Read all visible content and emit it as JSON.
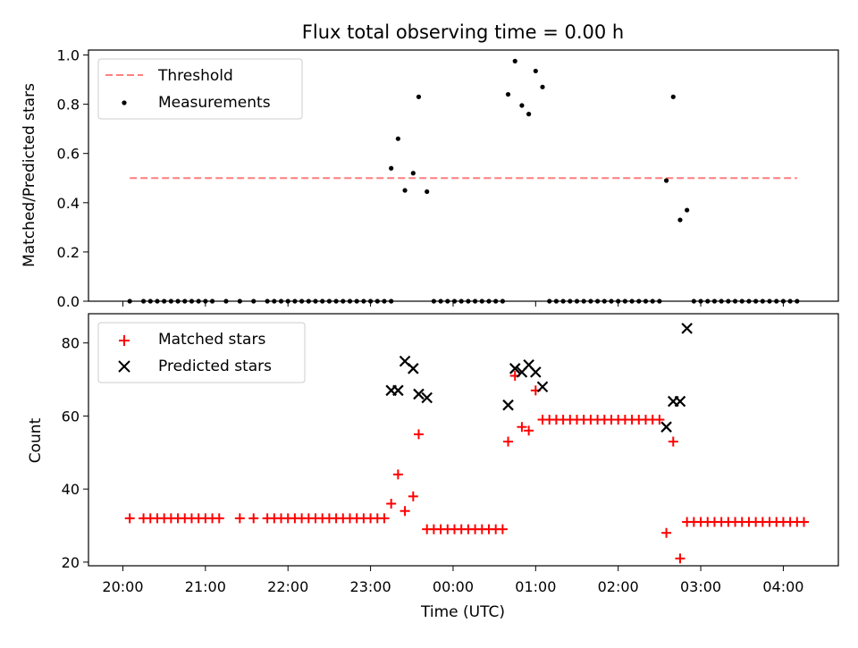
{
  "chart_data": [
    {
      "type": "scatter",
      "title": "Flux total observing time = 0.00 h",
      "xlabel": "",
      "ylabel": "Matched/Predicted stars",
      "ylim": [
        0,
        1.02
      ],
      "yticks": [
        "0.0",
        "0.2",
        "0.4",
        "0.6",
        "0.8",
        "1.0"
      ],
      "legend": {
        "position": "top-left",
        "entries": [
          "Threshold",
          "Measurements"
        ]
      },
      "threshold": {
        "name": "Threshold",
        "y": 0.5,
        "x_start": "20:05",
        "x_end": "04:10",
        "color": "#ff7f7f"
      },
      "series": [
        {
          "name": "Measurements",
          "color": "#000000",
          "points": [
            [
              "20:05",
              0
            ],
            [
              "20:15",
              0
            ],
            [
              "20:20",
              0
            ],
            [
              "20:25",
              0
            ],
            [
              "20:30",
              0
            ],
            [
              "20:35",
              0
            ],
            [
              "20:40",
              0
            ],
            [
              "20:45",
              0
            ],
            [
              "20:50",
              0
            ],
            [
              "20:55",
              0
            ],
            [
              "21:00",
              0
            ],
            [
              "21:05",
              0
            ],
            [
              "21:15",
              0
            ],
            [
              "21:25",
              0
            ],
            [
              "21:35",
              0
            ],
            [
              "21:45",
              0
            ],
            [
              "21:50",
              0
            ],
            [
              "21:55",
              0
            ],
            [
              "22:00",
              0
            ],
            [
              "22:05",
              0
            ],
            [
              "22:10",
              0
            ],
            [
              "22:15",
              0
            ],
            [
              "22:20",
              0
            ],
            [
              "22:25",
              0
            ],
            [
              "22:30",
              0
            ],
            [
              "22:35",
              0
            ],
            [
              "22:40",
              0
            ],
            [
              "22:45",
              0
            ],
            [
              "22:50",
              0
            ],
            [
              "22:55",
              0
            ],
            [
              "23:00",
              0
            ],
            [
              "23:05",
              0
            ],
            [
              "23:10",
              0
            ],
            [
              "23:15",
              0
            ],
            [
              "23:15",
              0.54
            ],
            [
              "23:20",
              0.66
            ],
            [
              "23:25",
              0.45
            ],
            [
              "23:31",
              0.52
            ],
            [
              "23:35",
              0.83
            ],
            [
              "23:41",
              0.445
            ],
            [
              "23:46",
              0
            ],
            [
              "23:51",
              0
            ],
            [
              "23:56",
              0
            ],
            [
              "00:01",
              0
            ],
            [
              "00:06",
              0
            ],
            [
              "00:11",
              0
            ],
            [
              "00:16",
              0
            ],
            [
              "00:21",
              0
            ],
            [
              "00:26",
              0
            ],
            [
              "00:31",
              0
            ],
            [
              "00:36",
              0
            ],
            [
              "00:40",
              0.84
            ],
            [
              "00:45",
              0.975
            ],
            [
              "00:50",
              0.795
            ],
            [
              "00:55",
              0.76
            ],
            [
              "01:00",
              0.935
            ],
            [
              "01:05",
              0.87
            ],
            [
              "01:10",
              0
            ],
            [
              "01:15",
              0
            ],
            [
              "01:20",
              0
            ],
            [
              "01:25",
              0
            ],
            [
              "01:30",
              0
            ],
            [
              "01:35",
              0
            ],
            [
              "01:40",
              0
            ],
            [
              "01:45",
              0
            ],
            [
              "01:50",
              0
            ],
            [
              "01:55",
              0
            ],
            [
              "02:00",
              0
            ],
            [
              "02:05",
              0
            ],
            [
              "02:10",
              0
            ],
            [
              "02:15",
              0
            ],
            [
              "02:20",
              0
            ],
            [
              "02:25",
              0
            ],
            [
              "02:30",
              0
            ],
            [
              "02:35",
              0.49
            ],
            [
              "02:40",
              0.83
            ],
            [
              "02:45",
              0.33
            ],
            [
              "02:50",
              0.37
            ],
            [
              "02:55",
              0
            ],
            [
              "03:00",
              0
            ],
            [
              "03:05",
              0
            ],
            [
              "03:10",
              0
            ],
            [
              "03:15",
              0
            ],
            [
              "03:20",
              0
            ],
            [
              "03:25",
              0
            ],
            [
              "03:30",
              0
            ],
            [
              "03:35",
              0
            ],
            [
              "03:40",
              0
            ],
            [
              "03:45",
              0
            ],
            [
              "03:50",
              0
            ],
            [
              "03:55",
              0
            ],
            [
              "04:00",
              0
            ],
            [
              "04:05",
              0
            ],
            [
              "04:10",
              0
            ]
          ]
        }
      ]
    },
    {
      "type": "scatter",
      "title": "",
      "xlabel": "Time (UTC)",
      "ylabel": "Count",
      "ylim": [
        19,
        88
      ],
      "xlim": [
        "19:35",
        "04:40"
      ],
      "xticks": [
        "20:00",
        "21:00",
        "22:00",
        "23:00",
        "00:00",
        "01:00",
        "02:00",
        "03:00",
        "04:00"
      ],
      "yticks": [
        "20",
        "40",
        "60",
        "80"
      ],
      "legend": {
        "position": "top-left",
        "entries": [
          "Matched stars",
          "Predicted stars"
        ]
      },
      "series": [
        {
          "name": "Matched stars",
          "marker": "plus",
          "color": "#ff0000",
          "points": [
            [
              "20:05",
              32
            ],
            [
              "20:15",
              32
            ],
            [
              "20:20",
              32
            ],
            [
              "20:25",
              32
            ],
            [
              "20:30",
              32
            ],
            [
              "20:35",
              32
            ],
            [
              "20:40",
              32
            ],
            [
              "20:45",
              32
            ],
            [
              "20:50",
              32
            ],
            [
              "20:55",
              32
            ],
            [
              "21:00",
              32
            ],
            [
              "21:05",
              32
            ],
            [
              "21:10",
              32
            ],
            [
              "21:25",
              32
            ],
            [
              "21:35",
              32
            ],
            [
              "21:45",
              32
            ],
            [
              "21:50",
              32
            ],
            [
              "21:55",
              32
            ],
            [
              "22:00",
              32
            ],
            [
              "22:05",
              32
            ],
            [
              "22:10",
              32
            ],
            [
              "22:15",
              32
            ],
            [
              "22:20",
              32
            ],
            [
              "22:25",
              32
            ],
            [
              "22:30",
              32
            ],
            [
              "22:35",
              32
            ],
            [
              "22:40",
              32
            ],
            [
              "22:45",
              32
            ],
            [
              "22:50",
              32
            ],
            [
              "22:55",
              32
            ],
            [
              "23:00",
              32
            ],
            [
              "23:05",
              32
            ],
            [
              "23:10",
              32
            ],
            [
              "23:15",
              36
            ],
            [
              "23:20",
              44
            ],
            [
              "23:25",
              34
            ],
            [
              "23:31",
              38
            ],
            [
              "23:35",
              55
            ],
            [
              "23:41",
              29
            ],
            [
              "23:46",
              29
            ],
            [
              "23:51",
              29
            ],
            [
              "23:56",
              29
            ],
            [
              "00:01",
              29
            ],
            [
              "00:06",
              29
            ],
            [
              "00:11",
              29
            ],
            [
              "00:16",
              29
            ],
            [
              "00:21",
              29
            ],
            [
              "00:26",
              29
            ],
            [
              "00:31",
              29
            ],
            [
              "00:36",
              29
            ],
            [
              "00:40",
              53
            ],
            [
              "00:45",
              71
            ],
            [
              "00:50",
              57
            ],
            [
              "00:55",
              56
            ],
            [
              "01:00",
              67
            ],
            [
              "01:05",
              59
            ],
            [
              "01:10",
              59
            ],
            [
              "01:15",
              59
            ],
            [
              "01:20",
              59
            ],
            [
              "01:25",
              59
            ],
            [
              "01:30",
              59
            ],
            [
              "01:35",
              59
            ],
            [
              "01:40",
              59
            ],
            [
              "01:45",
              59
            ],
            [
              "01:50",
              59
            ],
            [
              "01:55",
              59
            ],
            [
              "02:00",
              59
            ],
            [
              "02:05",
              59
            ],
            [
              "02:10",
              59
            ],
            [
              "02:15",
              59
            ],
            [
              "02:20",
              59
            ],
            [
              "02:25",
              59
            ],
            [
              "02:30",
              59
            ],
            [
              "02:35",
              28
            ],
            [
              "02:40",
              53
            ],
            [
              "02:45",
              21
            ],
            [
              "02:50",
              31
            ],
            [
              "02:55",
              31
            ],
            [
              "03:00",
              31
            ],
            [
              "03:05",
              31
            ],
            [
              "03:10",
              31
            ],
            [
              "03:15",
              31
            ],
            [
              "03:20",
              31
            ],
            [
              "03:25",
              31
            ],
            [
              "03:30",
              31
            ],
            [
              "03:35",
              31
            ],
            [
              "03:40",
              31
            ],
            [
              "03:45",
              31
            ],
            [
              "03:50",
              31
            ],
            [
              "03:55",
              31
            ],
            [
              "04:00",
              31
            ],
            [
              "04:05",
              31
            ],
            [
              "04:10",
              31
            ],
            [
              "04:15",
              31
            ]
          ]
        },
        {
          "name": "Predicted stars",
          "marker": "x",
          "color": "#000000",
          "points": [
            [
              "23:15",
              67
            ],
            [
              "23:20",
              67
            ],
            [
              "23:25",
              75
            ],
            [
              "23:31",
              73
            ],
            [
              "23:35",
              66
            ],
            [
              "23:41",
              65
            ],
            [
              "00:40",
              63
            ],
            [
              "00:45",
              73
            ],
            [
              "00:50",
              72
            ],
            [
              "00:55",
              74
            ],
            [
              "01:00",
              72
            ],
            [
              "01:05",
              68
            ],
            [
              "02:35",
              57
            ],
            [
              "02:40",
              64
            ],
            [
              "02:45",
              64
            ],
            [
              "02:50",
              84
            ]
          ]
        }
      ]
    }
  ]
}
